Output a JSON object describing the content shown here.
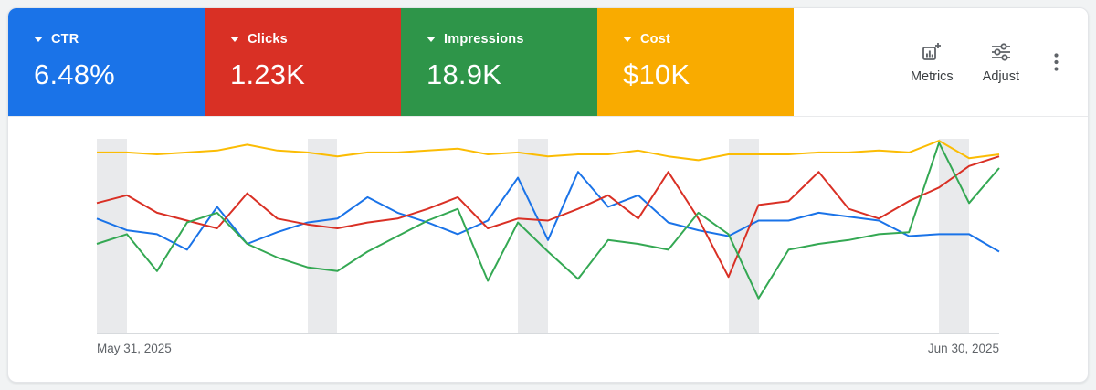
{
  "scorecards": [
    {
      "label": "CTR",
      "value": "6.48%",
      "color": "#1a73e8"
    },
    {
      "label": "Clicks",
      "value": "1.23K",
      "color": "#d93025"
    },
    {
      "label": "Impressions",
      "value": "18.9K",
      "color": "#2e9549"
    },
    {
      "label": "Cost",
      "value": "$10K",
      "color": "#f9ab00"
    }
  ],
  "toolbar": {
    "metrics_label": "Metrics",
    "adjust_label": "Adjust",
    "metrics_icon": "scorecard-chart-add-icon",
    "adjust_icon": "sliders-icon",
    "menu_icon": "vertical-kebab-icon",
    "icon_color": "#5f6368",
    "label_color": "#3c4043"
  },
  "chart_data": {
    "type": "line",
    "title": "",
    "x_label_start": "May 31, 2025",
    "x_label_end": "Jun 30, 2025",
    "x_days": 31,
    "ylim": [
      0,
      100
    ],
    "units": "relative height 0-100 (no y-axis labels shown in chart)",
    "grid": "single faint horizontal midline, bottom axis line",
    "legend_position": "none (colors match scorecards)",
    "weekend_bands": [
      [
        0,
        1
      ],
      [
        7,
        8
      ],
      [
        14,
        15
      ],
      [
        21,
        22
      ],
      [
        28,
        29
      ]
    ],
    "series": [
      {
        "name": "CTR",
        "color": "#1a73e8",
        "values": [
          59,
          53,
          51,
          43,
          65,
          46,
          52,
          57,
          59,
          70,
          62,
          57,
          51,
          58,
          80,
          48,
          83,
          65,
          71,
          57,
          53,
          50,
          58,
          58,
          62,
          60,
          58,
          50,
          51,
          51,
          42
        ]
      },
      {
        "name": "Clicks",
        "color": "#d93025",
        "values": [
          67,
          71,
          62,
          58,
          54,
          72,
          59,
          56,
          54,
          57,
          59,
          64,
          70,
          54,
          59,
          58,
          64,
          71,
          59,
          83,
          59,
          29,
          66,
          68,
          83,
          64,
          59,
          68,
          75,
          86,
          91
        ]
      },
      {
        "name": "Impressions",
        "color": "#34a853",
        "values": [
          46,
          51,
          32,
          57,
          62,
          46,
          39,
          34,
          32,
          42,
          50,
          58,
          64,
          27,
          57,
          42,
          28,
          48,
          46,
          43,
          62,
          51,
          18,
          43,
          46,
          48,
          51,
          52,
          98,
          67,
          85
        ]
      },
      {
        "name": "Cost",
        "color": "#fbbc04",
        "values": [
          93,
          93,
          92,
          93,
          94,
          97,
          94,
          93,
          91,
          93,
          93,
          94,
          95,
          92,
          93,
          91,
          92,
          92,
          94,
          91,
          89,
          92,
          92,
          92,
          93,
          93,
          94,
          93,
          99,
          90,
          92
        ]
      }
    ]
  }
}
